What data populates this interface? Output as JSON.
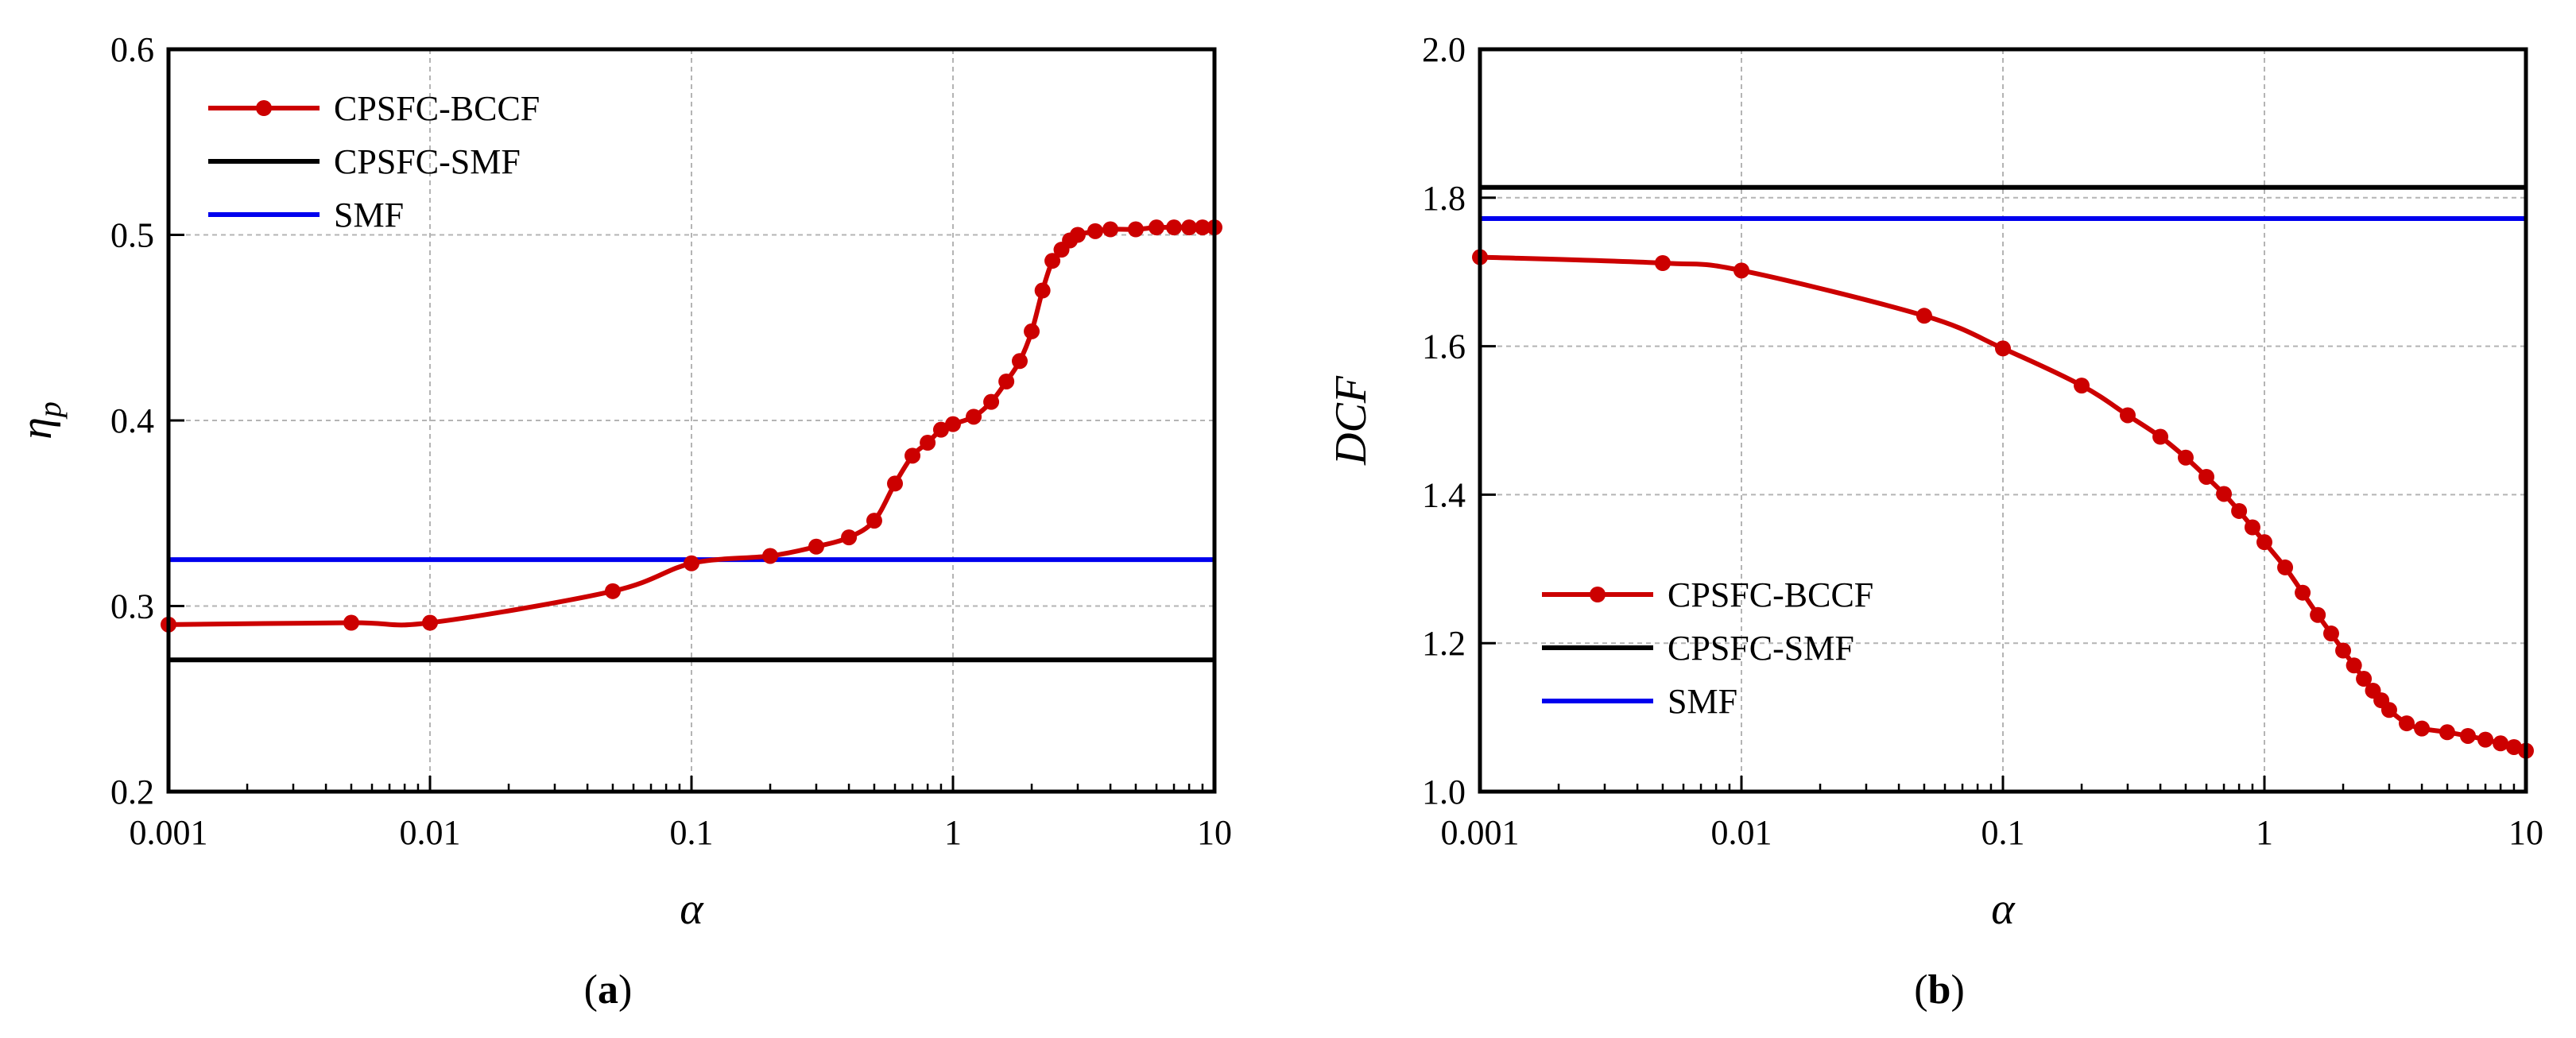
{
  "chart_data": [
    {
      "type": "line",
      "panel": "a",
      "caption": {
        "open": "(",
        "letter": "a",
        "close": ")"
      },
      "xscale": "log",
      "xlim": [
        0.001,
        10
      ],
      "ylim": [
        0.2,
        0.6
      ],
      "xlabel": "α",
      "ylabel_main": "η",
      "ylabel_sub": "p",
      "xticks": [
        0.001,
        0.01,
        0.1,
        1,
        10
      ],
      "xtick_labels": [
        "0.001",
        "0.01",
        "0.1",
        "1",
        "10"
      ],
      "yticks": [
        0.2,
        0.3,
        0.4,
        0.5,
        0.6
      ],
      "ytick_labels": [
        "0.2",
        "0.3",
        "0.4",
        "0.5",
        "0.6"
      ],
      "grid": true,
      "legend_position": "top-left",
      "series": [
        {
          "name": "CPSFC-BCCF",
          "color": "#cc0000",
          "markers": true,
          "x": [
            0.001,
            0.005,
            0.01,
            0.05,
            0.1,
            0.2,
            0.3,
            0.4,
            0.5,
            0.6,
            0.7,
            0.8,
            0.9,
            1.0,
            1.2,
            1.4,
            1.6,
            1.8,
            2.0,
            2.2,
            2.4,
            2.6,
            2.8,
            3.0,
            3.5,
            4.0,
            5.0,
            6.0,
            7.0,
            8.0,
            9.0,
            10.0
          ],
          "y": [
            0.29,
            0.291,
            0.291,
            0.308,
            0.323,
            0.327,
            0.332,
            0.337,
            0.346,
            0.366,
            0.381,
            0.388,
            0.395,
            0.398,
            0.402,
            0.41,
            0.421,
            0.432,
            0.448,
            0.47,
            0.486,
            0.492,
            0.497,
            0.5,
            0.502,
            0.503,
            0.503,
            0.504,
            0.504,
            0.504,
            0.504,
            0.504
          ]
        },
        {
          "name": "CPSFC-SMF",
          "color": "#000000",
          "markers": false,
          "x": [
            0.001,
            10
          ],
          "y": [
            0.271,
            0.271
          ]
        },
        {
          "name": "SMF",
          "color": "#0000ee",
          "markers": false,
          "x": [
            0.001,
            10
          ],
          "y": [
            0.325,
            0.325
          ]
        }
      ]
    },
    {
      "type": "line",
      "panel": "b",
      "caption": {
        "open": "(",
        "letter": "b",
        "close": ")"
      },
      "xscale": "log",
      "xlim": [
        0.001,
        10
      ],
      "ylim": [
        1.0,
        2.0
      ],
      "xlabel": "α",
      "ylabel_main": "DCF",
      "ylabel_sub": "",
      "xticks": [
        0.001,
        0.01,
        0.1,
        1,
        10
      ],
      "xtick_labels": [
        "0.001",
        "0.01",
        "0.1",
        "1",
        "10"
      ],
      "yticks": [
        1.0,
        1.2,
        1.4,
        1.6,
        1.8,
        2.0
      ],
      "ytick_labels": [
        "1.0",
        "1.2",
        "1.4",
        "1.6",
        "1.8",
        "2.0"
      ],
      "grid": true,
      "legend_position": "bottom-left",
      "series": [
        {
          "name": "CPSFC-BCCF",
          "color": "#cc0000",
          "markers": true,
          "x": [
            0.001,
            0.005,
            0.01,
            0.05,
            0.1,
            0.2,
            0.3,
            0.4,
            0.5,
            0.6,
            0.7,
            0.8,
            0.9,
            1.0,
            1.2,
            1.4,
            1.6,
            1.8,
            2.0,
            2.2,
            2.4,
            2.6,
            2.8,
            3.0,
            3.5,
            4.0,
            5.0,
            6.0,
            7.0,
            8.0,
            9.0,
            10.0
          ],
          "y": [
            1.72,
            1.712,
            1.702,
            1.641,
            1.597,
            1.547,
            1.507,
            1.478,
            1.45,
            1.424,
            1.401,
            1.378,
            1.356,
            1.336,
            1.302,
            1.268,
            1.238,
            1.213,
            1.19,
            1.17,
            1.152,
            1.136,
            1.123,
            1.11,
            1.092,
            1.085,
            1.08,
            1.075,
            1.07,
            1.065,
            1.06,
            1.055
          ]
        },
        {
          "name": "CPSFC-SMF",
          "color": "#000000",
          "markers": false,
          "x": [
            0.001,
            10
          ],
          "y": [
            1.814,
            1.814
          ]
        },
        {
          "name": "SMF",
          "color": "#0000ee",
          "markers": false,
          "x": [
            0.001,
            10
          ],
          "y": [
            1.772,
            1.772
          ]
        }
      ]
    }
  ]
}
